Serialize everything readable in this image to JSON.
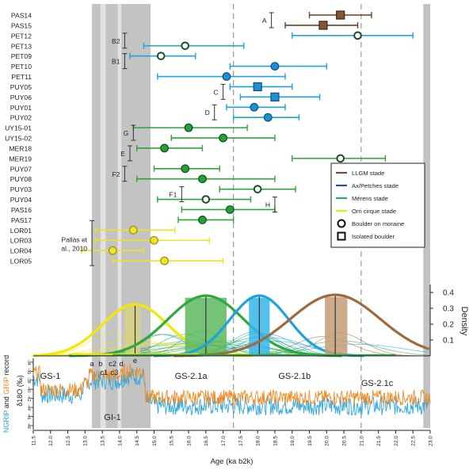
{
  "chart_data": {
    "type": "scatter",
    "x_axis": {
      "label": "Age (ka b2k)",
      "range": [
        11.5,
        23.0
      ],
      "ticks": [
        "11.5",
        "12.0",
        "12.5",
        "13.0",
        "13.5",
        "14.0",
        "14.5",
        "15.0",
        "15.5",
        "16.0",
        "16.5",
        "17.0",
        "17.5",
        "18.0",
        "18.5",
        "19.0",
        "19.5",
        "20.0",
        "20.5",
        "21.0",
        "21.5",
        "22.0",
        "22.5",
        "23.0"
      ]
    },
    "shaded_bands": [
      [
        13.2,
        13.45
      ],
      [
        13.6,
        13.95
      ],
      [
        14.05,
        14.9
      ]
    ],
    "light_bands": [
      [
        13.45,
        13.6
      ],
      [
        13.95,
        14.05
      ]
    ],
    "right_band": [
      22.8,
      23.0
    ],
    "dashed_lines": [
      17.3,
      21.0
    ],
    "samples": [
      {
        "name": "PAS14",
        "x": 20.4,
        "lo": 19.5,
        "hi": 21.3,
        "stage": "LLGM",
        "marker": "square",
        "filled": true
      },
      {
        "name": "PAS15",
        "x": 19.9,
        "lo": 18.8,
        "hi": 20.9,
        "stage": "LLGM",
        "marker": "square",
        "filled": true
      },
      {
        "name": "PET12",
        "x": 20.9,
        "lo": 19.0,
        "hi": 22.5,
        "stage": "AxPetches",
        "marker": "circle",
        "filled": false
      },
      {
        "name": "PET13",
        "x": 15.9,
        "lo": 14.7,
        "hi": 17.6,
        "stage": "AxPetches",
        "marker": "circle",
        "filled": false
      },
      {
        "name": "PET09",
        "x": 15.2,
        "lo": 14.3,
        "hi": 16.2,
        "stage": "AxPetches",
        "marker": "circle",
        "filled": false
      },
      {
        "name": "PET10",
        "x": 18.5,
        "lo": 17.2,
        "hi": 20.0,
        "stage": "AxPetches",
        "marker": "circle",
        "filled": true
      },
      {
        "name": "PET11",
        "x": 17.1,
        "lo": 15.1,
        "hi": 18.8,
        "stage": "AxPetches",
        "marker": "circle",
        "filled": true
      },
      {
        "name": "PUY05",
        "x": 18.0,
        "lo": 17.2,
        "hi": 19.0,
        "stage": "AxPetches",
        "marker": "square",
        "filled": true
      },
      {
        "name": "PUY06",
        "x": 18.5,
        "lo": 17.5,
        "hi": 19.8,
        "stage": "AxPetches",
        "marker": "square",
        "filled": true
      },
      {
        "name": "PUY01",
        "x": 17.9,
        "lo": 17.1,
        "hi": 18.8,
        "stage": "AxPetches",
        "marker": "circle",
        "filled": true
      },
      {
        "name": "PUY02",
        "x": 18.3,
        "lo": 17.3,
        "hi": 19.2,
        "stage": "AxPetches",
        "marker": "circle",
        "filled": true
      },
      {
        "name": "UY15-01",
        "x": 16.0,
        "lo": 14.4,
        "hi": 17.7,
        "stage": "Merens",
        "marker": "circle",
        "filled": true
      },
      {
        "name": "UY15-02",
        "x": 17.0,
        "lo": 15.5,
        "hi": 18.5,
        "stage": "Merens",
        "marker": "circle",
        "filled": true
      },
      {
        "name": "MER18",
        "x": 15.3,
        "lo": 14.5,
        "hi": 16.4,
        "stage": "Merens",
        "marker": "circle",
        "filled": true
      },
      {
        "name": "MER19",
        "x": 20.4,
        "lo": 19.0,
        "hi": 21.7,
        "stage": "Merens",
        "marker": "circle",
        "filled": false
      },
      {
        "name": "PUY07",
        "x": 15.9,
        "lo": 15.0,
        "hi": 16.9,
        "stage": "Merens",
        "marker": "circle",
        "filled": true
      },
      {
        "name": "PUY08",
        "x": 16.4,
        "lo": 14.5,
        "hi": 18.5,
        "stage": "Merens",
        "marker": "circle",
        "filled": true
      },
      {
        "name": "PUY03",
        "x": 18.0,
        "lo": 16.9,
        "hi": 19.1,
        "stage": "Merens",
        "marker": "circle",
        "filled": false
      },
      {
        "name": "PUY04",
        "x": 16.5,
        "lo": 15.1,
        "hi": 17.8,
        "stage": "Merens",
        "marker": "circle",
        "filled": false
      },
      {
        "name": "PAS16",
        "x": 17.2,
        "lo": 15.8,
        "hi": 18.5,
        "stage": "Merens",
        "marker": "circle",
        "filled": true
      },
      {
        "name": "PAS17",
        "x": 16.4,
        "lo": 15.7,
        "hi": 17.3,
        "stage": "Merens",
        "marker": "circle",
        "filled": true
      },
      {
        "name": "LOR01",
        "x": 14.4,
        "lo": 13.3,
        "hi": 15.6,
        "stage": "Orri",
        "marker": "circle",
        "filled": true
      },
      {
        "name": "LOR03",
        "x": 15.0,
        "lo": 13.3,
        "hi": 16.6,
        "stage": "Orri",
        "marker": "circle",
        "filled": true
      },
      {
        "name": "LOR04",
        "x": 13.8,
        "lo": 12.9,
        "hi": 14.7,
        "stage": "Orri",
        "marker": "circle",
        "filled": true
      },
      {
        "name": "LOR05",
        "x": 15.3,
        "lo": 13.8,
        "hi": 17.0,
        "stage": "Orri",
        "marker": "circle",
        "filled": true
      }
    ],
    "group_brackets": [
      {
        "label": "A",
        "from": "PAS14",
        "to": "PAS15",
        "x": 18.4
      },
      {
        "label": "B2",
        "from": "PET12",
        "to": "PET13",
        "x": 14.15
      },
      {
        "label": "B1",
        "from": "PET09",
        "to": "PET10",
        "x": 14.15
      },
      {
        "label": "C",
        "from": "PUY05",
        "to": "PUY06",
        "x": 17.0
      },
      {
        "label": "D",
        "from": "PUY01",
        "to": "PUY02",
        "x": 16.75
      },
      {
        "label": "G",
        "from": "UY15-01",
        "to": "UY15-02",
        "x": 14.4
      },
      {
        "label": "E",
        "from": "MER18",
        "to": "MER19",
        "x": 14.3
      },
      {
        "label": "F2",
        "from": "PUY07",
        "to": "PUY08",
        "x": 14.15
      },
      {
        "label": "F1",
        "from": "PUY03",
        "to": "PUY04",
        "x": 15.8
      },
      {
        "label": "H",
        "from": "PUY04",
        "to": "PAS16",
        "x": 18.5
      }
    ],
    "reference": {
      "text": "Pallàs et al., 2010",
      "from": "LOR01",
      "to": "LOR05",
      "x": 13.2
    },
    "legend": {
      "placement": "right",
      "entries": [
        {
          "label": "LLGM stade",
          "color": "#7B4A2D"
        },
        {
          "label": "Ax/Petches stade",
          "color": "#2B4FA8"
        },
        {
          "label": "Mérens stade",
          "color": "#2FA66A"
        },
        {
          "label": "Orri cirque stade",
          "color": "#F2E318"
        },
        {
          "label": "Boulder on moraine",
          "symbol": "circle"
        },
        {
          "label": "Isolated boulder",
          "symbol": "square"
        }
      ]
    },
    "density_panel": {
      "ylabel": "Density",
      "yticks": [
        "0.1",
        "0.2",
        "0.3",
        "0.4"
      ],
      "ylim": [
        0,
        0.45
      ],
      "stages": [
        {
          "stage": "Orri",
          "mean": 14.45,
          "sd": 0.95,
          "peak": 0.325,
          "band": [
            14.15,
            14.6
          ],
          "line_color": "#F2E800",
          "fill": "#D7D280"
        },
        {
          "stage": "Merens",
          "mean": 16.5,
          "sd": 1.1,
          "peak": 0.38,
          "band": [
            15.9,
            17.1
          ],
          "line_color": "#2EAA3C",
          "fill": "#5DB85E"
        },
        {
          "stage": "AxPetches",
          "mean": 18.05,
          "sd": 0.85,
          "peak": 0.38,
          "band": [
            17.75,
            18.35
          ],
          "line_color": "#1EA3DD",
          "fill": "#35B5EA"
        },
        {
          "stage": "LLGM",
          "mean": 20.25,
          "sd": 1.3,
          "peak": 0.385,
          "band": [
            19.95,
            20.6
          ],
          "line_color": "#9D6B3F",
          "fill": "#C49C75"
        }
      ]
    },
    "isotope_panel": {
      "ylabel": "δ18O (‰)",
      "side_label": [
        "NGRIP",
        " and ",
        "GRIP",
        " record"
      ],
      "yticks": [
        "-34",
        "-36",
        "-38",
        "-40",
        "-42",
        "-44",
        "-46",
        "-48"
      ],
      "series": [
        {
          "name": "NGRIP",
          "color": "#2CA7DF"
        },
        {
          "name": "GRIP",
          "color": "#F38A22"
        }
      ],
      "labels": [
        {
          "text": "GS-1",
          "x": 11.7,
          "row": "upper"
        },
        {
          "text": "a",
          "x": 13.2,
          "row": "sub"
        },
        {
          "text": "b",
          "x": 13.45,
          "row": "sub"
        },
        {
          "text": "c2",
          "x": 13.8,
          "row": "sub"
        },
        {
          "text": "d",
          "x": 14.05,
          "row": "sub"
        },
        {
          "text": "e",
          "x": 14.45,
          "row": "top"
        },
        {
          "text": "c1",
          "x": 13.55,
          "row": "sub2"
        },
        {
          "text": "c3",
          "x": 13.85,
          "row": "sub2"
        },
        {
          "text": "GS-2.1a",
          "x": 15.6,
          "row": "upper"
        },
        {
          "text": "GS-2.1b",
          "x": 18.6,
          "row": "upper"
        },
        {
          "text": "GS-2.1c",
          "x": 21.0,
          "row": "mid"
        },
        {
          "text": "GI-1",
          "x": 13.55,
          "row": "lower"
        }
      ]
    }
  }
}
